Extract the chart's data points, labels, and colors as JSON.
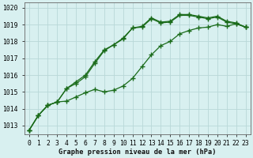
{
  "title": "Graphe pression niveau de la mer (hPa)",
  "hours": [
    0,
    1,
    2,
    3,
    4,
    5,
    6,
    7,
    8,
    9,
    10,
    11,
    12,
    13,
    14,
    15,
    16,
    17,
    18,
    19,
    20,
    21,
    22,
    23
  ],
  "line_top": [
    1012.7,
    1013.6,
    1014.2,
    1014.4,
    1015.2,
    1015.6,
    1016.0,
    1016.8,
    1017.5,
    1017.8,
    1018.2,
    1018.8,
    1018.9,
    1019.4,
    1019.15,
    1019.2,
    1019.6,
    1019.6,
    1019.5,
    1019.4,
    1019.5,
    1019.2,
    1019.1,
    1018.85
  ],
  "line_mid": [
    1012.7,
    1013.6,
    1014.2,
    1014.4,
    1015.2,
    1015.5,
    1015.9,
    1016.7,
    1017.45,
    1017.8,
    1018.15,
    1018.8,
    1018.85,
    1019.35,
    1019.1,
    1019.15,
    1019.55,
    1019.55,
    1019.45,
    1019.35,
    1019.45,
    1019.15,
    1019.05,
    1018.85
  ],
  "line_bot": [
    1012.7,
    1013.6,
    1014.2,
    1014.4,
    1014.45,
    1014.7,
    1014.95,
    1015.15,
    1015.0,
    1015.1,
    1015.35,
    1015.8,
    1016.5,
    1017.2,
    1017.75,
    1018.0,
    1018.45,
    1018.65,
    1018.8,
    1018.85,
    1019.0,
    1018.9,
    1019.05,
    1018.85
  ],
  "line_color": "#1a6b1a",
  "bg_color": "#d8f0f0",
  "grid_color": "#b8d8d8",
  "ylim_min": 1012.5,
  "ylim_max": 1020.3,
  "yticks": [
    1013,
    1014,
    1015,
    1016,
    1017,
    1018,
    1019,
    1020
  ],
  "xlabel_fontsize": 6.2,
  "tick_fontsize": 5.8
}
